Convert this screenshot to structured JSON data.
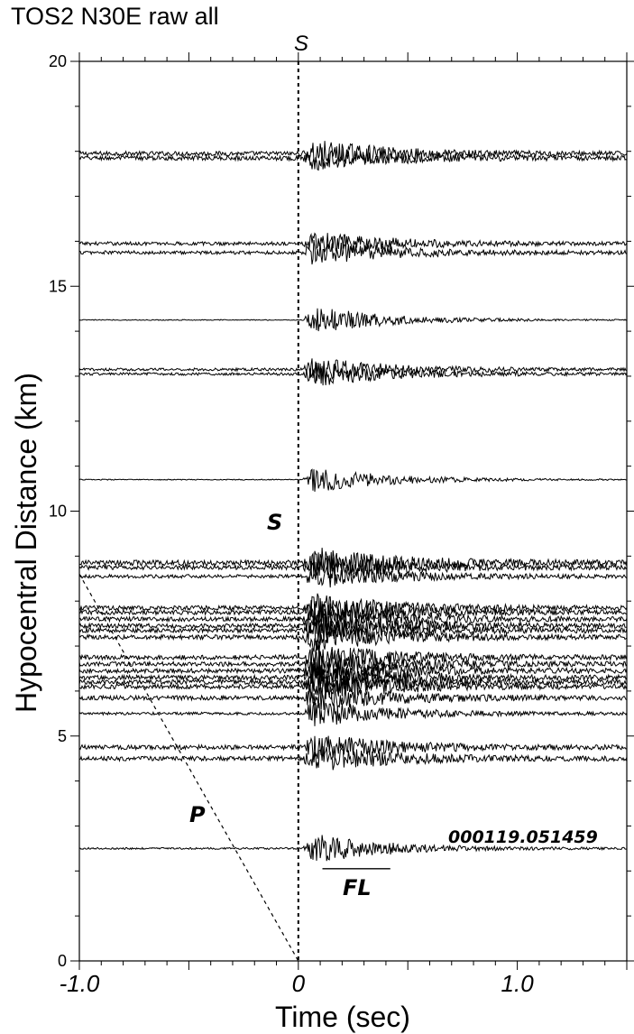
{
  "chart_data": {
    "type": "line",
    "title": "TOS2 N30E raw all",
    "xlabel": "Time (sec)",
    "ylabel": "Hypocentral Distance (km)",
    "xlim": [
      -1.0,
      1.5
    ],
    "ylim": [
      0,
      20
    ],
    "x_ticks": [
      "-1.0",
      "0",
      "1.0"
    ],
    "y_ticks": [
      "0",
      "5",
      "10",
      "15",
      "20"
    ],
    "top_marker": "S",
    "annotations": {
      "s_label": "S",
      "p_label": "P",
      "fl_label": "FL",
      "event_id": "000119.051459"
    },
    "p_line": {
      "from": [
        -1.0,
        8.6
      ],
      "to": [
        0.0,
        0.0
      ]
    },
    "s_line_time": 0.0,
    "fl_bar": {
      "t_start": 0.11,
      "t_end": 0.42,
      "distance": 2.05
    },
    "traces": [
      {
        "distance": 17.95,
        "amplitude": 0.32,
        "noise": 0.05
      },
      {
        "distance": 17.85,
        "amplitude": 0.28,
        "noise": 0.05
      },
      {
        "distance": 15.95,
        "amplitude": 0.28,
        "noise": 0.04
      },
      {
        "distance": 15.75,
        "amplitude": 0.3,
        "noise": 0.04
      },
      {
        "distance": 14.25,
        "amplitude": 0.35,
        "noise": 0.01
      },
      {
        "distance": 13.15,
        "amplitude": 0.3,
        "noise": 0.03
      },
      {
        "distance": 13.05,
        "amplitude": 0.3,
        "noise": 0.03
      },
      {
        "distance": 10.7,
        "amplitude": 0.32,
        "noise": 0.01
      },
      {
        "distance": 8.85,
        "amplitude": 0.36,
        "noise": 0.06
      },
      {
        "distance": 8.75,
        "amplitude": 0.34,
        "noise": 0.05
      },
      {
        "distance": 8.55,
        "amplitude": 0.3,
        "noise": 0.04
      },
      {
        "distance": 7.85,
        "amplitude": 0.34,
        "noise": 0.05
      },
      {
        "distance": 7.75,
        "amplitude": 0.34,
        "noise": 0.05
      },
      {
        "distance": 7.6,
        "amplitude": 0.34,
        "noise": 0.05
      },
      {
        "distance": 7.45,
        "amplitude": 0.34,
        "noise": 0.05
      },
      {
        "distance": 7.35,
        "amplitude": 0.34,
        "noise": 0.05
      },
      {
        "distance": 7.2,
        "amplitude": 0.34,
        "noise": 0.05
      },
      {
        "distance": 6.75,
        "amplitude": 0.34,
        "noise": 0.05
      },
      {
        "distance": 6.6,
        "amplitude": 0.34,
        "noise": 0.05
      },
      {
        "distance": 6.45,
        "amplitude": 0.34,
        "noise": 0.05
      },
      {
        "distance": 6.3,
        "amplitude": 0.34,
        "noise": 0.05
      },
      {
        "distance": 6.2,
        "amplitude": 0.34,
        "noise": 0.05
      },
      {
        "distance": 6.1,
        "amplitude": 0.34,
        "noise": 0.05
      },
      {
        "distance": 5.85,
        "amplitude": 0.3,
        "noise": 0.05
      },
      {
        "distance": 5.5,
        "amplitude": 0.34,
        "noise": 0.03
      },
      {
        "distance": 4.75,
        "amplitude": 0.32,
        "noise": 0.05
      },
      {
        "distance": 4.5,
        "amplitude": 0.32,
        "noise": 0.05
      },
      {
        "distance": 2.5,
        "amplitude": 0.36,
        "noise": 0.02
      }
    ]
  }
}
